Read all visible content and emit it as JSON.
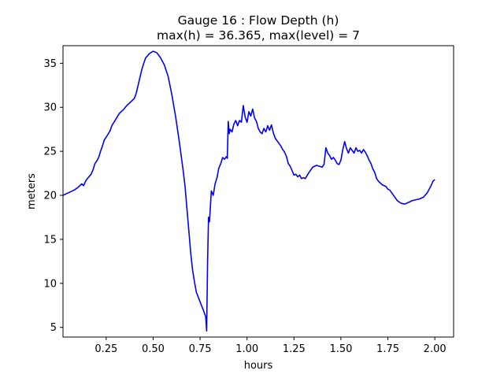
{
  "chart_data": {
    "type": "line",
    "title": "Gauge 16 : Flow Depth (h)",
    "subtitle": "max(h) =  36.365,    max(level) = 7",
    "xlabel": "hours",
    "ylabel": "meters",
    "xlim": [
      0.02,
      2.1
    ],
    "ylim": [
      3.9,
      37.0
    ],
    "xticks": [
      0.25,
      0.5,
      0.75,
      1.0,
      1.25,
      1.5,
      1.75,
      2.0
    ],
    "xtick_labels": [
      "0.25",
      "0.50",
      "0.75",
      "1.00",
      "1.25",
      "1.50",
      "1.75",
      "2.00"
    ],
    "yticks": [
      5,
      10,
      15,
      20,
      25,
      30,
      35
    ],
    "ytick_labels": [
      "5",
      "10",
      "15",
      "20",
      "25",
      "30",
      "35"
    ],
    "grid": false,
    "series": [
      {
        "color": "#0000ff",
        "points": [
          [
            0.02,
            20.0
          ],
          [
            0.05,
            20.3
          ],
          [
            0.08,
            20.6
          ],
          [
            0.1,
            20.9
          ],
          [
            0.12,
            21.3
          ],
          [
            0.13,
            21.1
          ],
          [
            0.14,
            21.6
          ],
          [
            0.15,
            21.9
          ],
          [
            0.17,
            22.4
          ],
          [
            0.18,
            22.9
          ],
          [
            0.19,
            23.6
          ],
          [
            0.2,
            23.9
          ],
          [
            0.21,
            24.3
          ],
          [
            0.22,
            25.0
          ],
          [
            0.23,
            25.6
          ],
          [
            0.24,
            26.3
          ],
          [
            0.25,
            26.6
          ],
          [
            0.27,
            27.3
          ],
          [
            0.28,
            27.9
          ],
          [
            0.3,
            28.6
          ],
          [
            0.32,
            29.3
          ],
          [
            0.34,
            29.7
          ],
          [
            0.36,
            30.2
          ],
          [
            0.38,
            30.6
          ],
          [
            0.4,
            31.0
          ],
          [
            0.41,
            31.6
          ],
          [
            0.42,
            32.5
          ],
          [
            0.43,
            33.4
          ],
          [
            0.44,
            34.3
          ],
          [
            0.45,
            35.0
          ],
          [
            0.46,
            35.6
          ],
          [
            0.48,
            36.1
          ],
          [
            0.5,
            36.365
          ],
          [
            0.52,
            36.2
          ],
          [
            0.54,
            35.6
          ],
          [
            0.56,
            34.8
          ],
          [
            0.58,
            33.5
          ],
          [
            0.6,
            31.4
          ],
          [
            0.62,
            28.9
          ],
          [
            0.64,
            26.0
          ],
          [
            0.66,
            22.8
          ],
          [
            0.67,
            21.0
          ],
          [
            0.68,
            18.5
          ],
          [
            0.69,
            16.0
          ],
          [
            0.7,
            13.5
          ],
          [
            0.71,
            11.5
          ],
          [
            0.72,
            10.2
          ],
          [
            0.73,
            9.0
          ],
          [
            0.75,
            7.9
          ],
          [
            0.77,
            6.8
          ],
          [
            0.78,
            6.2
          ],
          [
            0.785,
            4.6
          ],
          [
            0.79,
            12.5
          ],
          [
            0.795,
            17.5
          ],
          [
            0.8,
            17.0
          ],
          [
            0.81,
            20.5
          ],
          [
            0.82,
            20.0
          ],
          [
            0.83,
            21.3
          ],
          [
            0.84,
            22.0
          ],
          [
            0.85,
            23.1
          ],
          [
            0.86,
            23.6
          ],
          [
            0.87,
            24.3
          ],
          [
            0.88,
            24.1
          ],
          [
            0.89,
            24.4
          ],
          [
            0.895,
            24.2
          ],
          [
            0.9,
            28.4
          ],
          [
            0.905,
            27.0
          ],
          [
            0.91,
            27.5
          ],
          [
            0.92,
            27.2
          ],
          [
            0.93,
            28.1
          ],
          [
            0.94,
            28.5
          ],
          [
            0.95,
            27.9
          ],
          [
            0.96,
            28.5
          ],
          [
            0.97,
            28.3
          ],
          [
            0.98,
            30.2
          ],
          [
            0.99,
            28.9
          ],
          [
            1.0,
            28.3
          ],
          [
            1.01,
            29.5
          ],
          [
            1.02,
            29.0
          ],
          [
            1.03,
            29.8
          ],
          [
            1.04,
            28.8
          ],
          [
            1.05,
            28.4
          ],
          [
            1.06,
            27.6
          ],
          [
            1.07,
            27.2
          ],
          [
            1.08,
            27.0
          ],
          [
            1.09,
            27.6
          ],
          [
            1.1,
            27.2
          ],
          [
            1.11,
            27.9
          ],
          [
            1.12,
            27.4
          ],
          [
            1.13,
            28.0
          ],
          [
            1.14,
            27.1
          ],
          [
            1.15,
            26.5
          ],
          [
            1.16,
            26.2
          ],
          [
            1.17,
            25.9
          ],
          [
            1.18,
            25.6
          ],
          [
            1.19,
            25.2
          ],
          [
            1.2,
            24.9
          ],
          [
            1.21,
            24.4
          ],
          [
            1.22,
            23.6
          ],
          [
            1.23,
            23.3
          ],
          [
            1.24,
            22.8
          ],
          [
            1.25,
            22.3
          ],
          [
            1.26,
            22.4
          ],
          [
            1.27,
            22.1
          ],
          [
            1.28,
            22.3
          ],
          [
            1.29,
            21.9
          ],
          [
            1.3,
            22.0
          ],
          [
            1.31,
            21.9
          ],
          [
            1.33,
            22.6
          ],
          [
            1.35,
            23.2
          ],
          [
            1.37,
            23.4
          ],
          [
            1.4,
            23.2
          ],
          [
            1.41,
            23.5
          ],
          [
            1.42,
            25.4
          ],
          [
            1.43,
            24.8
          ],
          [
            1.44,
            24.5
          ],
          [
            1.45,
            24.1
          ],
          [
            1.46,
            24.3
          ],
          [
            1.47,
            24.0
          ],
          [
            1.48,
            23.6
          ],
          [
            1.49,
            23.5
          ],
          [
            1.5,
            24.0
          ],
          [
            1.51,
            25.2
          ],
          [
            1.52,
            26.1
          ],
          [
            1.53,
            25.3
          ],
          [
            1.54,
            24.8
          ],
          [
            1.55,
            25.4
          ],
          [
            1.56,
            25.1
          ],
          [
            1.57,
            24.8
          ],
          [
            1.58,
            25.4
          ],
          [
            1.59,
            25.0
          ],
          [
            1.6,
            25.1
          ],
          [
            1.61,
            24.8
          ],
          [
            1.62,
            25.2
          ],
          [
            1.63,
            24.9
          ],
          [
            1.64,
            24.5
          ],
          [
            1.65,
            24.0
          ],
          [
            1.66,
            23.6
          ],
          [
            1.67,
            23.0
          ],
          [
            1.68,
            22.6
          ],
          [
            1.69,
            21.9
          ],
          [
            1.7,
            21.6
          ],
          [
            1.72,
            21.2
          ],
          [
            1.74,
            21.0
          ],
          [
            1.75,
            20.7
          ],
          [
            1.76,
            20.6
          ],
          [
            1.78,
            20.0
          ],
          [
            1.8,
            19.4
          ],
          [
            1.82,
            19.1
          ],
          [
            1.84,
            19.0
          ],
          [
            1.86,
            19.2
          ],
          [
            1.88,
            19.4
          ],
          [
            1.9,
            19.5
          ],
          [
            1.92,
            19.6
          ],
          [
            1.94,
            19.8
          ],
          [
            1.96,
            20.3
          ],
          [
            1.97,
            20.7
          ],
          [
            1.98,
            21.1
          ],
          [
            1.99,
            21.6
          ],
          [
            2.0,
            21.8
          ]
        ]
      }
    ]
  }
}
